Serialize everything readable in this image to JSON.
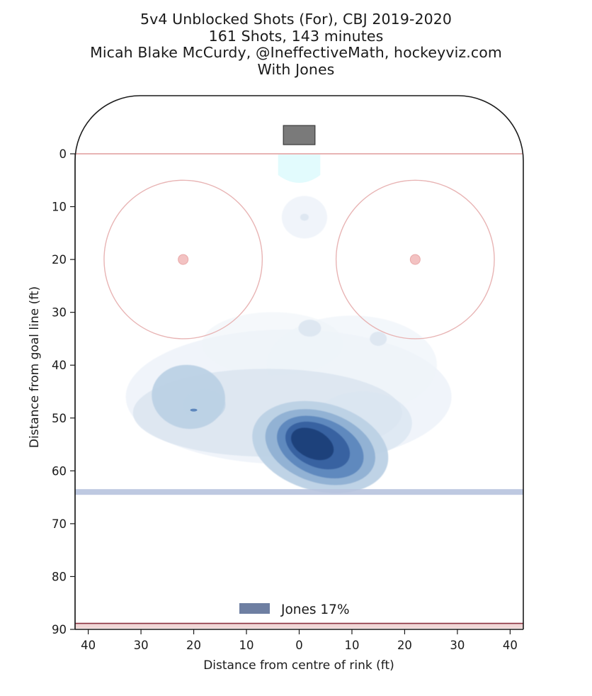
{
  "chart_data": {
    "type": "heatmap",
    "title_lines": [
      "5v4 Unblocked Shots (For), CBJ 2019-2020",
      "161 Shots, 143 minutes",
      "Micah Blake McCurdy, @IneffectiveMath, hockeyviz.com",
      "With Jones"
    ],
    "xlabel": "Distance from centre of rink (ft)",
    "ylabel": "Distance from goal line (ft)",
    "xlim": [
      -42.5,
      42.5
    ],
    "ylim": [
      0,
      90
    ],
    "x_tick_values": [
      -40,
      -30,
      -20,
      -10,
      0,
      10,
      20,
      30,
      40
    ],
    "x_tick_labels": [
      "40",
      "30",
      "20",
      "10",
      "0",
      "10",
      "20",
      "30",
      "40"
    ],
    "y_tick_values": [
      0,
      10,
      20,
      30,
      40,
      50,
      60,
      70,
      80,
      90
    ],
    "y_tick_labels": [
      "0",
      "10",
      "20",
      "30",
      "40",
      "50",
      "60",
      "70",
      "80",
      "90"
    ],
    "grid": false,
    "legend": {
      "position": "bottom-center",
      "label": "Jones 17%",
      "color": "#6e7fa2"
    },
    "contour_colors": [
      "#eef3f9",
      "#dbe6f1",
      "#bcd1e5",
      "#8fb0d3",
      "#5d87bd",
      "#355f9f",
      "#1f3f7a"
    ],
    "density_peaks": [
      {
        "x": 4,
        "y": 55.5,
        "level": 7
      },
      {
        "x": -21,
        "y": 46,
        "level": 3
      },
      {
        "x": 2,
        "y": 33,
        "level": 2
      },
      {
        "x": 15,
        "y": 35,
        "level": 2
      },
      {
        "x": 1,
        "y": 12,
        "level": 1
      }
    ],
    "rink": {
      "goal_line_y": 0,
      "blue_line_y": 64,
      "end_y": 89,
      "faceoff_circles": [
        {
          "x": -22,
          "y": 20,
          "r": 15
        },
        {
          "x": 22,
          "y": 20,
          "r": 15
        }
      ],
      "net": {
        "x": 0,
        "y": -2,
        "width": 6,
        "depth": 3.5
      },
      "colors": {
        "boards": "#1a1a1a",
        "red_lines": "#e8b4b4",
        "blue_line": "#b7c3de",
        "crease": "#e2fbfd",
        "net": "#7a7a7a",
        "faceoff_dot": "#f3c2c2"
      }
    }
  }
}
